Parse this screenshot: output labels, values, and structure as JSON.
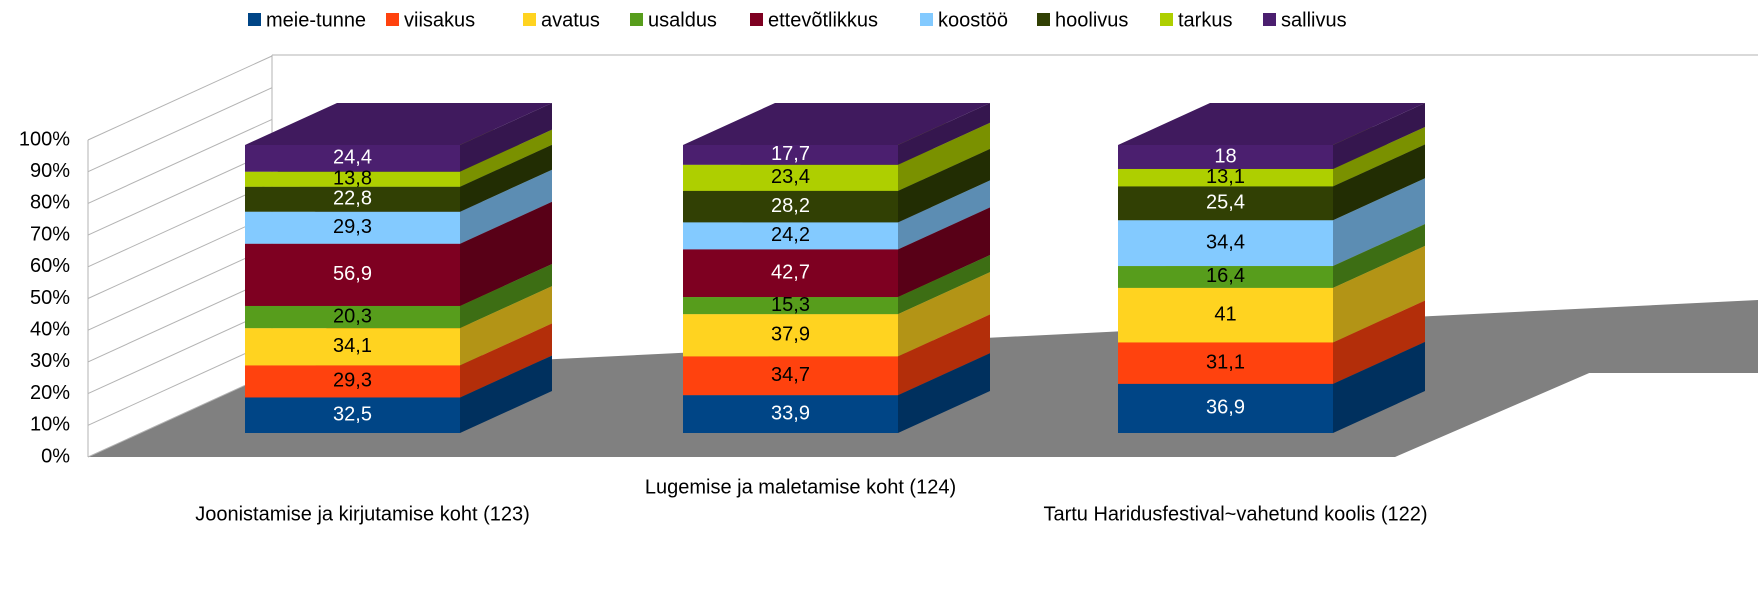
{
  "chart_data": {
    "type": "bar3d",
    "stacking": "percent",
    "categories": [
      "Joonistamise ja kirjutamise koht (123)",
      "Lugemise ja maletamise koht (124)",
      "Tartu Haridusfestival~vahetund koolis (122)"
    ],
    "series": [
      {
        "name": "meie-tunne",
        "color": "#004586",
        "values": [
          32.5,
          33.9,
          36.9
        ],
        "value_labels": [
          "32,5",
          "33,9",
          "36,9"
        ]
      },
      {
        "name": "viisakus",
        "color": "#ff420e",
        "values": [
          29.3,
          34.7,
          31.1
        ],
        "value_labels": [
          "29,3",
          "34,7",
          "31,1"
        ]
      },
      {
        "name": "avatus",
        "color": "#ffd320",
        "values": [
          34.1,
          37.9,
          41
        ],
        "value_labels": [
          "34,1",
          "37,9",
          "41"
        ]
      },
      {
        "name": "usaldus",
        "color": "#579d1c",
        "values": [
          20.3,
          15.3,
          16.4
        ],
        "value_labels": [
          "20,3",
          "15,3",
          "16,4"
        ]
      },
      {
        "name": "ettevõtlikkus",
        "color": "#7e0021",
        "values": [
          56.9,
          42.7,
          null
        ],
        "value_labels": [
          "56,9",
          "42,7",
          null
        ]
      },
      {
        "name": "koostöö",
        "color": "#83caff",
        "values": [
          29.3,
          24.2,
          34.4
        ],
        "value_labels": [
          "29,3",
          "24,2",
          "34,4"
        ]
      },
      {
        "name": "hoolivus",
        "color": "#314004",
        "values": [
          22.8,
          28.2,
          25.4
        ],
        "value_labels": [
          "22,8",
          "28,2",
          "25,4"
        ]
      },
      {
        "name": "tarkus",
        "color": "#aecf00",
        "values": [
          13.8,
          23.4,
          13.1
        ],
        "value_labels": [
          "13,8",
          "23,4",
          "13,1"
        ]
      },
      {
        "name": "sallivus",
        "color": "#4b1f6f",
        "values": [
          24.4,
          17.7,
          18
        ],
        "value_labels": [
          "24,4",
          "17,7",
          "18"
        ]
      }
    ],
    "ylim": [
      0,
      100
    ],
    "yticks": [
      {
        "value": 0,
        "label": "0%"
      },
      {
        "value": 10,
        "label": "10%"
      },
      {
        "value": 20,
        "label": "20%"
      },
      {
        "value": 30,
        "label": "30%"
      },
      {
        "value": 40,
        "label": "40%"
      },
      {
        "value": 50,
        "label": "50%"
      },
      {
        "value": 60,
        "label": "60%"
      },
      {
        "value": 70,
        "label": "70%"
      },
      {
        "value": 80,
        "label": "80%"
      },
      {
        "value": 90,
        "label": "90%"
      },
      {
        "value": 100,
        "label": "100%"
      }
    ],
    "grid": true,
    "legend": "top"
  }
}
